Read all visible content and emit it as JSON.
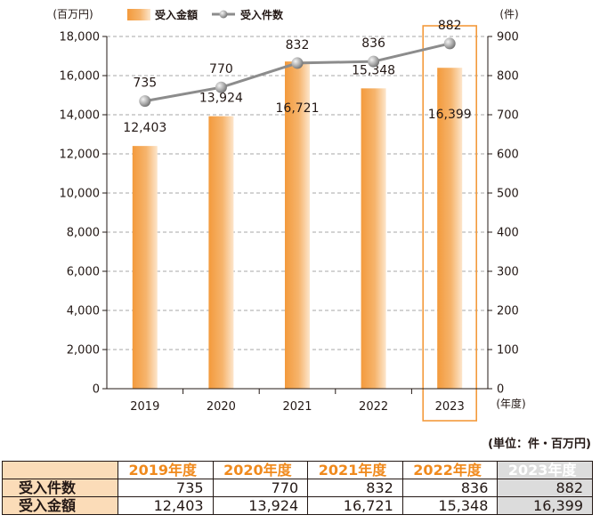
{
  "chart_data": {
    "type": "bar+line",
    "categories": [
      "2019",
      "2020",
      "2021",
      "2022",
      "2023"
    ],
    "series": [
      {
        "name": "受入金額",
        "type": "bar",
        "axis": "left",
        "values": [
          12403,
          13924,
          16721,
          15348,
          16399
        ],
        "labels": [
          "12,403",
          "13,924",
          "16,721",
          "15,348",
          "16,399"
        ]
      },
      {
        "name": "受入件数",
        "type": "line",
        "axis": "right",
        "values": [
          735,
          770,
          832,
          836,
          882
        ],
        "labels": [
          "735",
          "770",
          "832",
          "836",
          "882"
        ]
      }
    ],
    "left_axis": {
      "unit": "(百万円)",
      "min": 0,
      "max": 18000,
      "step": 2000,
      "ticks": [
        "0",
        "2,000",
        "4,000",
        "6,000",
        "8,000",
        "10,000",
        "12,000",
        "14,000",
        "16,000",
        "18,000"
      ]
    },
    "right_axis": {
      "unit": "(件)",
      "min": 0,
      "max": 900,
      "step": 100,
      "ticks": [
        "0",
        "100",
        "200",
        "300",
        "400",
        "500",
        "600",
        "700",
        "800",
        "900"
      ]
    },
    "xlabel": "(年度)",
    "grid": "dashed horizontal",
    "legend": "top",
    "highlight_category": "2023",
    "colors": {
      "bar": "#f39a3c",
      "bar_light": "#fde6cc",
      "line": "#8c8c8c",
      "highlight_box": "#f39a3c"
    }
  },
  "table": {
    "unit_note": "(単位：件・百万円)",
    "headers": [
      "2019年度",
      "2020年度",
      "2021年度",
      "2022年度",
      "2023年度"
    ],
    "rows": [
      {
        "label": "受入件数",
        "values": [
          "735",
          "770",
          "832",
          "836",
          "882"
        ]
      },
      {
        "label": "受入金額",
        "values": [
          "12,403",
          "13,924",
          "16,721",
          "15,348",
          "16,399"
        ]
      }
    ]
  }
}
